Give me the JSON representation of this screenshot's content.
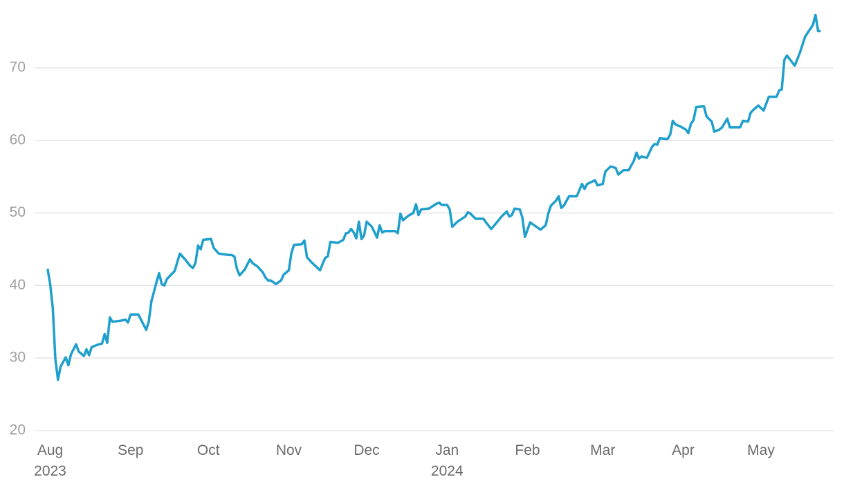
{
  "chart_data": {
    "type": "line",
    "x": [
      -1,
      0,
      1,
      2,
      3,
      4,
      6,
      7,
      8,
      10,
      11,
      13,
      14,
      15,
      16,
      18,
      20,
      21,
      22,
      23,
      24,
      26,
      28,
      29,
      30,
      31,
      34,
      35,
      37,
      38,
      39,
      41,
      42,
      43,
      44,
      45,
      48,
      50,
      52,
      54,
      55,
      56,
      57,
      58,
      59,
      62,
      63,
      64,
      65,
      69,
      70,
      71,
      72,
      73,
      75,
      77,
      78,
      80,
      82,
      83,
      84,
      85,
      87,
      89,
      90,
      92,
      93,
      94,
      97,
      98,
      99,
      101,
      104,
      106,
      107,
      108,
      111,
      113,
      114,
      115,
      116,
      117,
      118,
      119,
      120,
      121,
      122,
      124,
      126,
      127,
      128,
      129,
      131,
      133,
      134,
      135,
      136,
      138,
      140,
      141,
      142,
      143,
      146,
      149,
      150,
      151,
      153,
      154,
      155,
      157,
      160,
      161,
      162,
      164,
      167,
      168,
      170,
      171,
      174,
      176,
      177,
      178,
      179,
      181,
      182,
      183,
      185,
      187,
      189,
      191,
      192,
      193,
      195,
      196,
      197,
      198,
      200,
      203,
      205,
      206,
      207,
      210,
      211,
      213,
      214,
      216,
      218,
      219,
      221,
      223,
      225,
      226,
      227,
      228,
      230,
      232,
      233,
      234,
      235,
      238,
      239,
      240,
      241,
      243,
      245,
      246,
      247,
      248,
      249,
      252,
      253,
      255,
      256,
      258,
      259,
      261,
      262,
      265,
      266,
      267,
      269,
      270,
      271,
      273,
      275,
      277,
      280,
      281,
      282,
      283,
      284,
      287,
      289,
      291,
      294,
      295,
      296,
      297
    ],
    "series": [
      {
        "color": "#1f9fcc",
        "values": [
          42.3,
          40.2,
          36.9,
          29.9,
          27.0,
          28.8,
          30.1,
          29.0,
          30.5,
          31.9,
          30.9,
          30.3,
          31.2,
          30.4,
          31.5,
          31.8,
          32.0,
          33.3,
          32.1,
          35.6,
          35.0,
          35.1,
          35.2,
          35.3,
          34.9,
          36.0,
          36.0,
          35.3,
          33.9,
          35.0,
          37.8,
          40.5,
          41.7,
          40.2,
          40.0,
          40.9,
          42.0,
          44.4,
          43.6,
          42.7,
          42.4,
          43.1,
          45.5,
          45.0,
          46.3,
          46.4,
          45.2,
          44.8,
          44.4,
          44.2,
          44.2,
          44.0,
          42.3,
          41.4,
          42.2,
          43.6,
          43.1,
          42.6,
          41.8,
          41.1,
          40.7,
          40.7,
          40.2,
          40.7,
          41.5,
          42.1,
          44.5,
          45.6,
          45.7,
          46.2,
          43.9,
          43.1,
          42.1,
          43.8,
          44.0,
          46.0,
          45.9,
          46.3,
          47.2,
          47.3,
          47.8,
          47.3,
          46.5,
          48.8,
          46.4,
          46.9,
          48.8,
          48.1,
          46.6,
          48.3,
          47.3,
          47.5,
          47.5,
          47.5,
          47.2,
          49.9,
          49.0,
          49.6,
          50.0,
          51.2,
          49.7,
          50.5,
          50.6,
          51.3,
          51.4,
          51.1,
          51.1,
          50.5,
          48.1,
          48.8,
          49.5,
          50.1,
          49.9,
          49.2,
          49.2,
          48.7,
          47.8,
          48.2,
          49.5,
          50.2,
          49.5,
          49.7,
          50.6,
          50.5,
          49.4,
          46.7,
          48.7,
          48.2,
          47.7,
          48.3,
          49.9,
          51.0,
          51.7,
          52.3,
          50.7,
          51.0,
          52.3,
          52.3,
          54.0,
          53.3,
          54.0,
          54.5,
          53.8,
          54.0,
          55.7,
          56.4,
          56.2,
          55.3,
          55.9,
          55.9,
          57.2,
          58.3,
          57.5,
          57.8,
          57.6,
          59.1,
          59.5,
          59.4,
          60.3,
          60.2,
          60.8,
          62.7,
          62.2,
          61.9,
          61.5,
          61.0,
          62.3,
          62.8,
          64.6,
          64.7,
          63.3,
          62.6,
          61.2,
          61.5,
          61.8,
          63.0,
          61.8,
          61.8,
          61.8,
          62.7,
          62.6,
          63.8,
          64.2,
          64.8,
          64.1,
          66.0,
          66.0,
          66.9,
          67.0,
          71.1,
          71.7,
          70.3,
          72.1,
          74.3,
          75.9,
          77.3,
          75.1,
          75.1
        ]
      }
    ],
    "xlim": [
      -6,
      302
    ],
    "xticks": [
      {
        "value": 0,
        "label": "Aug\n2023"
      },
      {
        "value": 31,
        "label": "Sep"
      },
      {
        "value": 61,
        "label": "Oct"
      },
      {
        "value": 92,
        "label": "Nov"
      },
      {
        "value": 122,
        "label": "Dec"
      },
      {
        "value": 153,
        "label": "Jan\n2024"
      },
      {
        "value": 184,
        "label": "Feb"
      },
      {
        "value": 213,
        "label": "Mar"
      },
      {
        "value": 244,
        "label": "Apr"
      },
      {
        "value": 274,
        "label": "May"
      }
    ],
    "ylim": [
      20,
      77.5
    ],
    "yticks": [
      20,
      30,
      40,
      50,
      60,
      70
    ],
    "grid": true
  }
}
